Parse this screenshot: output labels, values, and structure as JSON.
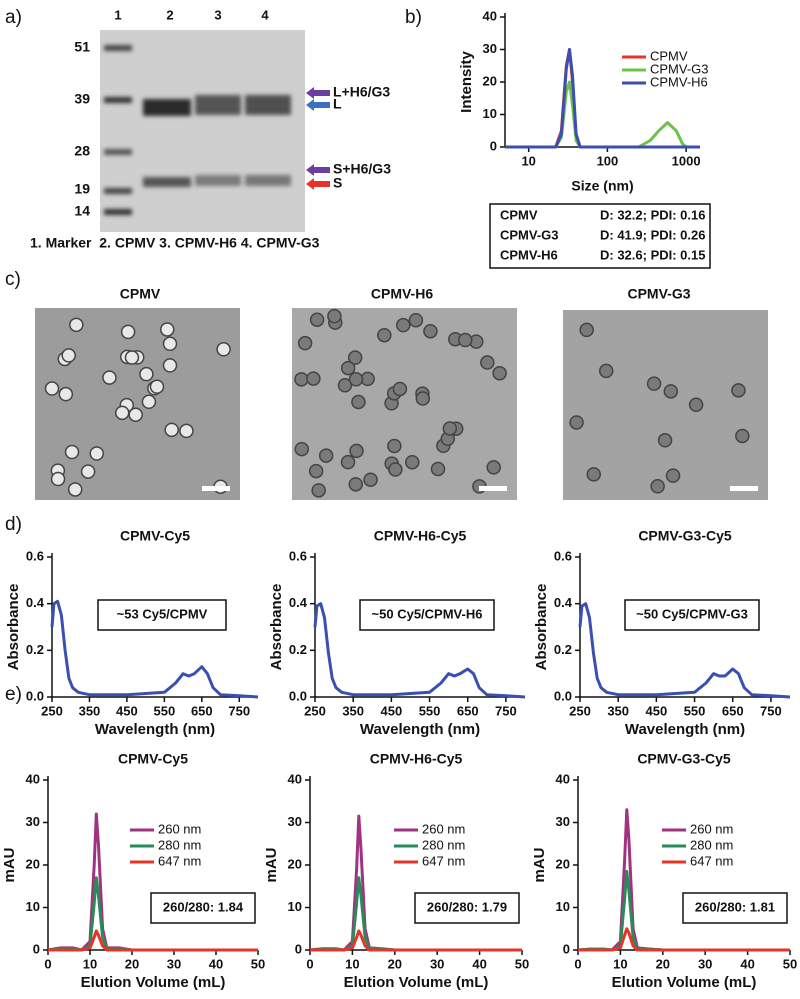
{
  "panel_labels": [
    "a)",
    "b)",
    "c)",
    "d)",
    "e)"
  ],
  "gel": {
    "lanes": [
      "1",
      "2",
      "3",
      "4"
    ],
    "marker_kda": [
      "51",
      "39",
      "28",
      "19",
      "14"
    ],
    "bands": [
      "L+H6/G3",
      "L",
      "S+H6/G3",
      "S"
    ],
    "caption": "1. Marker  2. CPMV 3. CPMV-H6 4. CPMV-G3"
  },
  "dls_table": {
    "rows": [
      [
        "CPMV",
        "D: 32.2; PDI: 0.16"
      ],
      [
        "CPMV-G3",
        "D: 41.9; PDI: 0.26"
      ],
      [
        "CPMV-H6",
        "D: 32.6; PDI: 0.15"
      ]
    ]
  },
  "tem": {
    "titles": [
      "CPMV",
      "CPMV-H6",
      "CPMV-G3"
    ]
  },
  "chart_data": [
    {
      "type": "line",
      "xlabel": "Size (nm)",
      "ylabel": "Intensity",
      "xlog": true,
      "xlim": [
        5,
        1500
      ],
      "xticks": [
        10,
        100,
        1000
      ],
      "ylim": [
        0,
        40
      ],
      "yticks": [
        0,
        10,
        20,
        30,
        40
      ],
      "legend": "upper right",
      "x": [
        5,
        18,
        22,
        26,
        30,
        33,
        36,
        40,
        45,
        200,
        250,
        350,
        450,
        580,
        750,
        900,
        1000,
        1500
      ],
      "series": [
        {
          "name": "CPMV",
          "color": "#e8332b",
          "values": [
            0,
            0,
            0,
            5,
            25,
            30,
            20,
            3,
            0,
            0,
            0,
            0,
            0,
            0,
            0,
            0,
            0,
            0
          ]
        },
        {
          "name": "CPMV-G3",
          "color": "#6cc24a",
          "values": [
            0,
            0,
            0,
            3,
            17,
            20,
            13,
            2,
            0,
            0,
            0,
            2,
            5,
            7.5,
            5,
            1,
            0,
            0
          ]
        },
        {
          "name": "CPMV-H6",
          "color": "#3a4fb0",
          "values": [
            0,
            0,
            0,
            4,
            24,
            30,
            22,
            4,
            0,
            0,
            0,
            0,
            0,
            0,
            0,
            0,
            0,
            0
          ]
        }
      ]
    },
    {
      "type": "line",
      "title": "CPMV-Cy5",
      "xlabel": "Wavelength (nm)",
      "ylabel": "Absorbance",
      "annotation": "~53 Cy5/CPMV",
      "color": "#3a4fb0",
      "xlim": [
        250,
        800
      ],
      "xticks": [
        250,
        350,
        450,
        550,
        650,
        750
      ],
      "ylim": [
        0,
        0.6
      ],
      "yticks": [
        {
          "value": 0,
          "label": "0.0"
        },
        0.2,
        0.4,
        0.6
      ],
      "x": [
        250,
        255,
        265,
        275,
        285,
        295,
        305,
        320,
        350,
        450,
        550,
        580,
        600,
        615,
        630,
        650,
        665,
        680,
        700,
        750,
        800
      ],
      "values": [
        0.3,
        0.4,
        0.41,
        0.35,
        0.2,
        0.08,
        0.04,
        0.02,
        0.01,
        0.01,
        0.02,
        0.06,
        0.1,
        0.09,
        0.1,
        0.13,
        0.1,
        0.04,
        0.01,
        0.005,
        0
      ]
    },
    {
      "type": "line",
      "title": "CPMV-H6-Cy5",
      "xlabel": "Wavelength (nm)",
      "ylabel": "Absorbance",
      "annotation": "~50 Cy5/CPMV-H6",
      "color": "#3a4fb0",
      "xlim": [
        250,
        800
      ],
      "xticks": [
        250,
        350,
        450,
        550,
        650,
        750
      ],
      "ylim": [
        0,
        0.6
      ],
      "yticks": [
        {
          "value": 0,
          "label": "0.0"
        },
        0.2,
        0.4,
        0.6
      ],
      "x": [
        250,
        255,
        265,
        275,
        285,
        295,
        305,
        320,
        350,
        450,
        550,
        580,
        600,
        615,
        630,
        650,
        665,
        680,
        700,
        750,
        800
      ],
      "values": [
        0.3,
        0.39,
        0.4,
        0.34,
        0.19,
        0.08,
        0.04,
        0.02,
        0.01,
        0.01,
        0.02,
        0.06,
        0.1,
        0.09,
        0.1,
        0.12,
        0.1,
        0.04,
        0.01,
        0.005,
        0
      ]
    },
    {
      "type": "line",
      "title": "CPMV-G3-Cy5",
      "xlabel": "Wavelength (nm)",
      "ylabel": "Absorbance",
      "annotation": "~50 Cy5/CPMV-G3",
      "color": "#3a4fb0",
      "xlim": [
        250,
        800
      ],
      "xticks": [
        250,
        350,
        450,
        550,
        650,
        750
      ],
      "ylim": [
        0,
        0.6
      ],
      "yticks": [
        {
          "value": 0,
          "label": "0.0"
        },
        0.2,
        0.4,
        0.6
      ],
      "x": [
        250,
        255,
        265,
        275,
        285,
        295,
        305,
        320,
        350,
        450,
        550,
        580,
        600,
        615,
        630,
        650,
        665,
        680,
        700,
        750,
        800
      ],
      "values": [
        0.3,
        0.39,
        0.4,
        0.34,
        0.19,
        0.08,
        0.04,
        0.02,
        0.01,
        0.01,
        0.02,
        0.06,
        0.1,
        0.09,
        0.09,
        0.12,
        0.1,
        0.04,
        0.01,
        0.005,
        0
      ]
    },
    {
      "type": "line",
      "title": "CPMV-Cy5",
      "xlabel": "Elution Volume (mL)",
      "ylabel": "mAU",
      "annotation": "260/280: 1.84",
      "legend": "right",
      "xlim": [
        0,
        50
      ],
      "xticks": [
        0,
        10,
        20,
        30,
        40,
        50
      ],
      "ylim": [
        0,
        40
      ],
      "yticks": [
        0,
        10,
        20,
        30,
        40
      ],
      "x": [
        0,
        3,
        6,
        8,
        10,
        11,
        11.5,
        12,
        13,
        14,
        17,
        20,
        30,
        40,
        50
      ],
      "series": [
        {
          "name": "260 nm",
          "color": "#a0337f",
          "values": [
            0,
            0.5,
            0.5,
            0,
            2,
            20,
            32,
            25,
            5,
            0.5,
            0.5,
            0,
            0,
            0,
            0
          ]
        },
        {
          "name": "280 nm",
          "color": "#2a8a5a",
          "values": [
            0,
            0.3,
            0.3,
            0,
            1,
            11,
            17,
            13,
            3,
            0.3,
            0.3,
            0,
            0,
            0,
            0
          ]
        },
        {
          "name": "647 nm",
          "color": "#e8332b",
          "values": [
            0,
            0,
            0,
            0,
            0.5,
            3,
            4.5,
            3.5,
            1,
            0,
            0,
            0,
            0,
            0,
            0
          ]
        }
      ]
    },
    {
      "type": "line",
      "title": "CPMV-H6-Cy5",
      "xlabel": "Elution Volume (mL)",
      "ylabel": "mAU",
      "annotation": "260/280: 1.79",
      "legend": "right",
      "xlim": [
        0,
        50
      ],
      "xticks": [
        0,
        10,
        20,
        30,
        40,
        50
      ],
      "ylim": [
        0,
        40
      ],
      "yticks": [
        0,
        10,
        20,
        30,
        40
      ],
      "x": [
        0,
        3,
        6,
        8,
        10,
        11,
        11.5,
        12,
        13,
        14,
        17,
        20,
        30,
        40,
        50
      ],
      "series": [
        {
          "name": "260 nm",
          "color": "#a0337f",
          "values": [
            0,
            0.3,
            0.3,
            0,
            2,
            19,
            31.5,
            24,
            5,
            0.5,
            0.3,
            0,
            0,
            0,
            0
          ]
        },
        {
          "name": "280 nm",
          "color": "#2a8a5a",
          "values": [
            0,
            0.2,
            0.2,
            0,
            1,
            11,
            17,
            13,
            3,
            0.3,
            0.2,
            0,
            0,
            0,
            0
          ]
        },
        {
          "name": "647 nm",
          "color": "#e8332b",
          "values": [
            0,
            0,
            0,
            0,
            0.5,
            3,
            4.5,
            3.5,
            1,
            0,
            0,
            0,
            0,
            0,
            0
          ]
        }
      ]
    },
    {
      "type": "line",
      "title": "CPMV-G3-Cy5",
      "xlabel": "Elution Volume (mL)",
      "ylabel": "mAU",
      "annotation": "260/280: 1.81",
      "legend": "right",
      "xlim": [
        0,
        50
      ],
      "xticks": [
        0,
        10,
        20,
        30,
        40,
        50
      ],
      "ylim": [
        0,
        40
      ],
      "yticks": [
        0,
        10,
        20,
        30,
        40
      ],
      "x": [
        0,
        3,
        6,
        8,
        10,
        11,
        11.5,
        12,
        13,
        14,
        17,
        20,
        30,
        40,
        50
      ],
      "series": [
        {
          "name": "260 nm",
          "color": "#a0337f",
          "values": [
            0,
            0.2,
            0.2,
            0,
            2,
            21,
            33,
            26,
            5,
            0.5,
            0.2,
            0,
            0,
            0,
            0
          ]
        },
        {
          "name": "280 nm",
          "color": "#2a8a5a",
          "values": [
            0,
            0.2,
            0.2,
            0,
            1,
            12,
            18.5,
            14,
            3,
            0.3,
            0.2,
            0,
            0,
            0,
            0
          ]
        },
        {
          "name": "647 nm",
          "color": "#e8332b",
          "values": [
            0,
            0,
            0,
            0,
            0.5,
            3.5,
            5,
            4,
            1,
            0,
            0,
            0,
            0,
            0,
            0
          ]
        }
      ]
    }
  ]
}
